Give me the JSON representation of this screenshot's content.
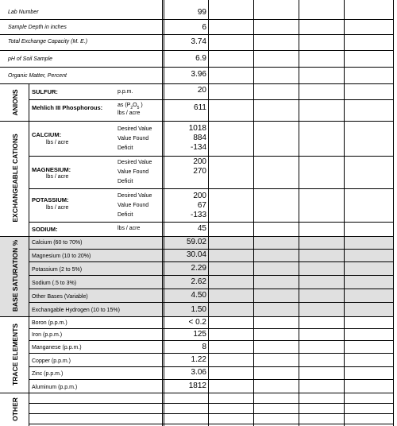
{
  "general": [
    {
      "label": "Lab Number",
      "value": "99"
    },
    {
      "label": "Sample Depth in inches",
      "value": "6"
    },
    {
      "label": "Total Exchange Capacity (M. E.)",
      "value": "3.74"
    },
    {
      "label": "pH of Soil Sample",
      "value": "6.9"
    },
    {
      "label": "Organic Matter, Percent",
      "value": "3.96"
    }
  ],
  "sections": {
    "anions": "ANIONS",
    "cations": "EXCHANGEABLE CATIONS",
    "base_saturation": "BASE SATURATION %",
    "trace": "TRACE ELEMENTS",
    "other": "OTHER"
  },
  "anions": {
    "sulfur": {
      "label": "SULFUR:",
      "unit": "p.p.m.",
      "value": "20"
    },
    "phosphorous": {
      "label": "Mehlich III Phosphorous:",
      "unit1": "as (P",
      "unit1_sub": "2",
      "unit1_o": "O",
      "unit1_sub2": "5",
      "unit1_close": ")",
      "unit2": "lbs / acre",
      "value": "611"
    }
  },
  "cation_rows": {
    "desired": "Desired Value",
    "found": "Value Found",
    "deficit": "Deficit"
  },
  "cations": {
    "calcium": {
      "label": "CALCIUM:",
      "units": "lbs / acre",
      "desired": "1018",
      "found": "884",
      "deficit": "-134"
    },
    "magnesium": {
      "label": "MAGNESIUM:",
      "units": "lbs / acre",
      "desired": "200",
      "found": "270",
      "deficit": ""
    },
    "potassium": {
      "label": "POTASSIUM:",
      "units": "lbs / acre",
      "desired": "200",
      "found": "67",
      "deficit": "-133"
    },
    "sodium": {
      "label": "SODIUM:",
      "units": "lbs / acre",
      "value": "45"
    }
  },
  "base_saturation": [
    {
      "label": "Calcium (60 to 70%)",
      "value": "59.02"
    },
    {
      "label": "Magnesium (10 to 20%)",
      "value": "30.04"
    },
    {
      "label": "Potassium (2 to 5%)",
      "value": "2.29"
    },
    {
      "label": "Sodium (.5 to 3%)",
      "value": "2.62"
    },
    {
      "label": "Other Bases (Variable)",
      "value": "4.50"
    },
    {
      "label": "Exchangable Hydrogen (10 to 15%)",
      "value": "1.50"
    }
  ],
  "trace": [
    {
      "label": "Boron (p.p.m.)",
      "value": "< 0.2"
    },
    {
      "label": "Iron (p.p.m.)",
      "value": "125"
    },
    {
      "label": "Manganese (p.p.m.)",
      "value": "8"
    },
    {
      "label": "Copper (p.p.m.)",
      "value": "1.22"
    },
    {
      "label": "Zinc (p.p.m.)",
      "value": "3.06"
    },
    {
      "label": "Aluminum (p.p.m.)",
      "value": "1812"
    }
  ],
  "colors": {
    "shade": "#e0e0e0",
    "lines": "#000000"
  }
}
